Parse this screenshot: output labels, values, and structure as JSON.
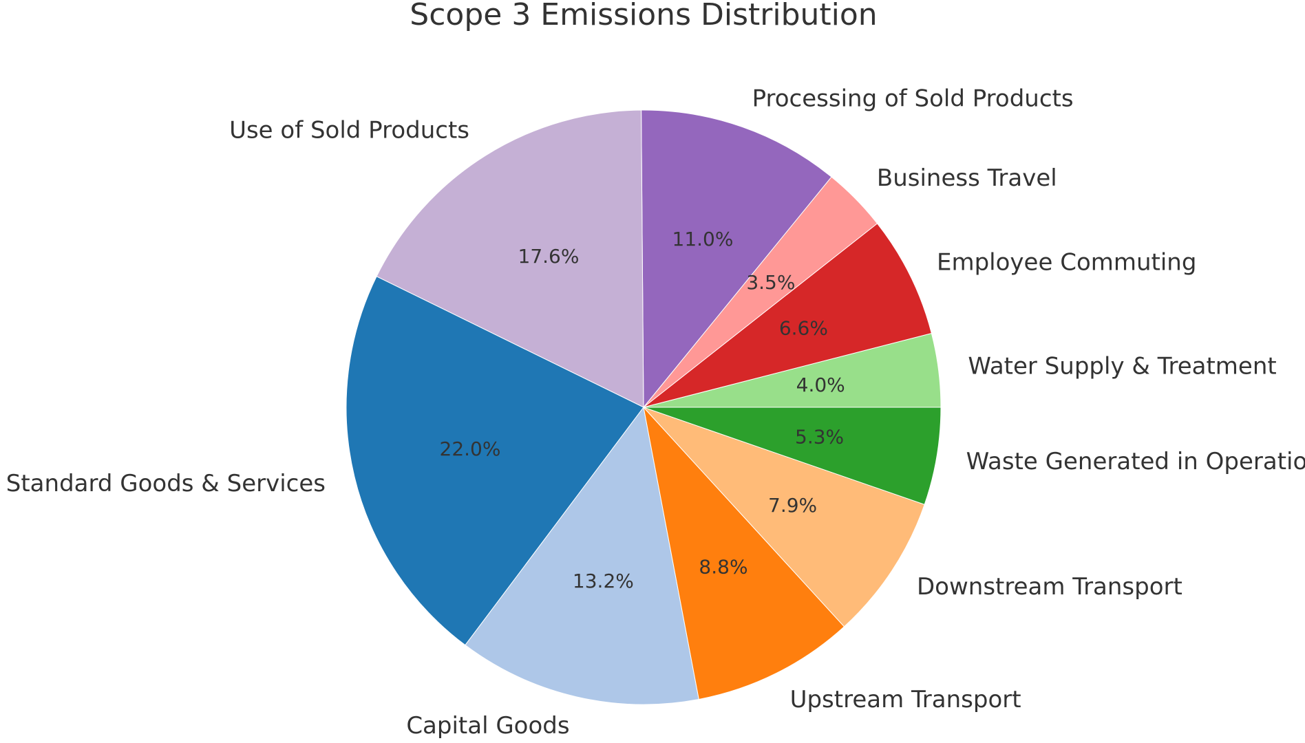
{
  "chart_data": {
    "type": "pie",
    "title": "Scope 3 Emissions Distribution",
    "start_angle_deg": 0,
    "direction": "counterclockwise",
    "legend": "none",
    "slices": [
      {
        "label": "Water Supply & Treatment",
        "value": 4.0,
        "pct_label": "4.0%",
        "color": "#98df8a"
      },
      {
        "label": "Employee Commuting",
        "value": 6.6,
        "pct_label": "6.6%",
        "color": "#d62728"
      },
      {
        "label": "Business Travel",
        "value": 3.5,
        "pct_label": "3.5%",
        "color": "#ff9896"
      },
      {
        "label": "Processing of Sold Products",
        "value": 11.0,
        "pct_label": "11.0%",
        "color": "#9467bd"
      },
      {
        "label": "Use of Sold Products",
        "value": 17.6,
        "pct_label": "17.6%",
        "color": "#c5b0d5"
      },
      {
        "label": "Standard Goods & Services",
        "value": 22.0,
        "pct_label": "22.0%",
        "color": "#1f77b4"
      },
      {
        "label": "Capital Goods",
        "value": 13.2,
        "pct_label": "13.2%",
        "color": "#aec7e8"
      },
      {
        "label": "Upstream Transport",
        "value": 8.8,
        "pct_label": "8.8%",
        "color": "#ff7f0e"
      },
      {
        "label": "Downstream Transport",
        "value": 7.9,
        "pct_label": "7.9%",
        "color": "#ffbb78"
      },
      {
        "label": "Waste Generated in Operations",
        "value": 5.3,
        "pct_label": "5.3%",
        "color": "#2ca02c"
      }
    ]
  }
}
